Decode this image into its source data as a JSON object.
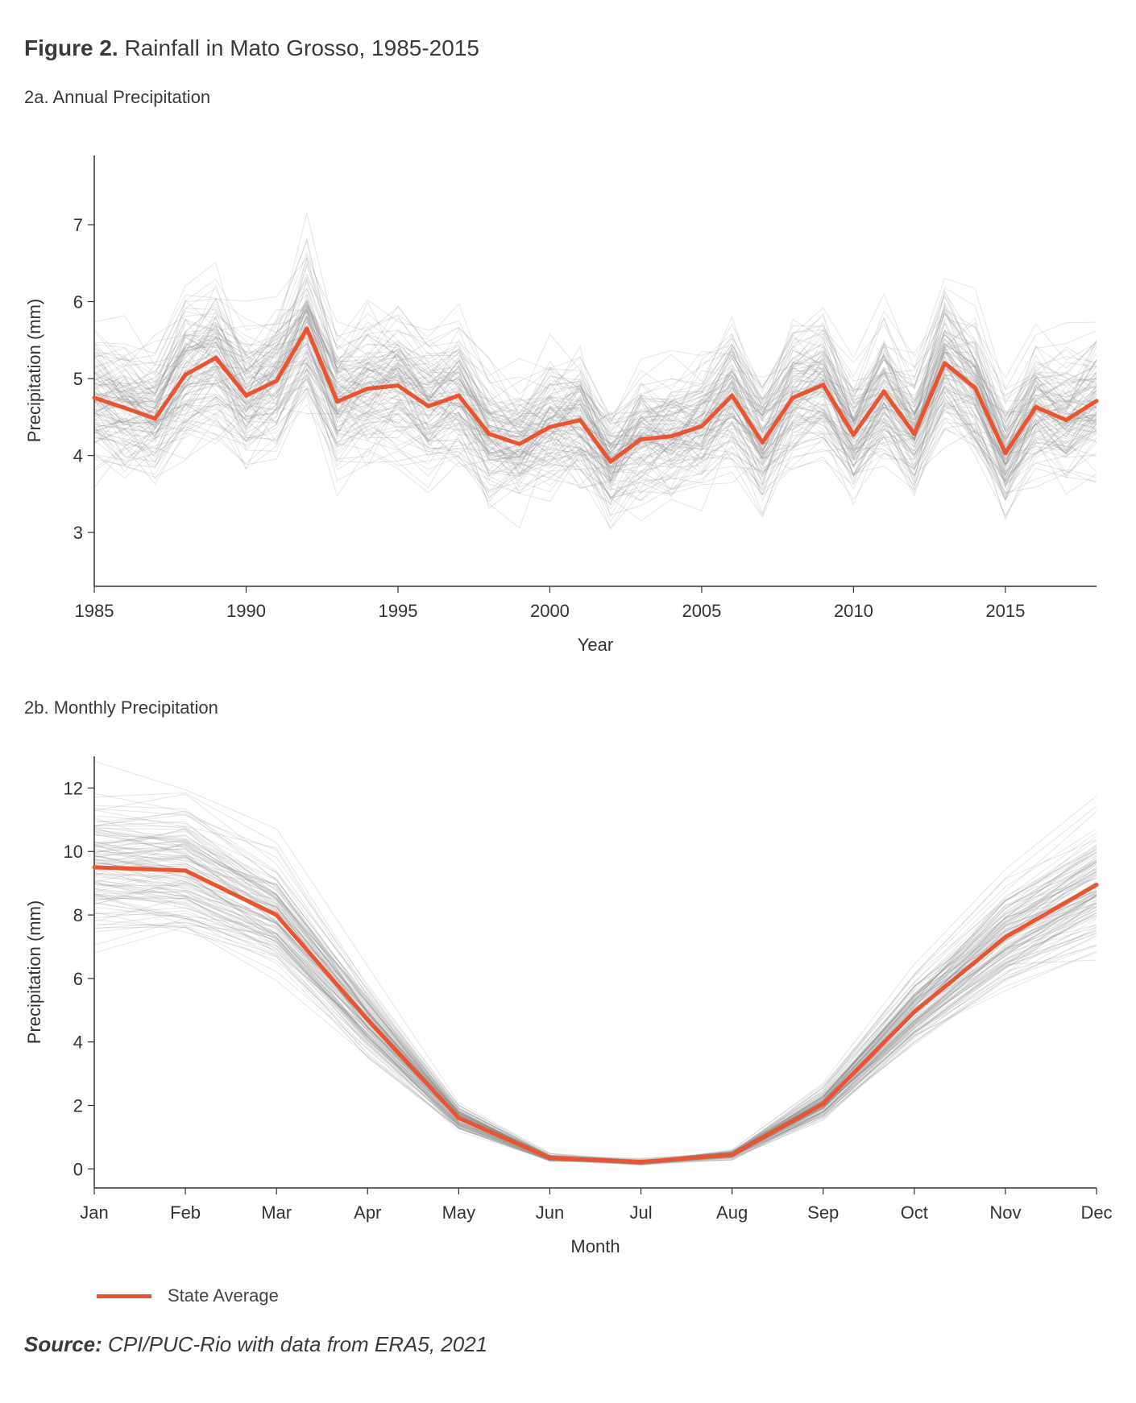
{
  "figure": {
    "label": "Figure 2.",
    "title": "Rainfall in Mato Grosso, 1985-2015"
  },
  "legend": {
    "label": "State Average",
    "color": "#e95531"
  },
  "source": {
    "label": "Source:",
    "text": "CPI/PUC-Rio with data from ERA5, 2021"
  },
  "colors": {
    "average": "#e95531",
    "grid_lines": "#999999"
  },
  "chart_data": [
    {
      "type": "line",
      "title": "2a. Annual Precipitation",
      "xlabel": "Year",
      "ylabel": "Precipitation (mm)",
      "xlim": [
        1985,
        2018
      ],
      "ylim": [
        2.3,
        7.9
      ],
      "xticks": [
        "1985",
        "1990",
        "1995",
        "2000",
        "2005",
        "2010",
        "2015"
      ],
      "yticks": [
        "3",
        "4",
        "5",
        "6",
        "7"
      ],
      "grid": false,
      "background_series_count": 120,
      "x": [
        1985,
        1986,
        1987,
        1988,
        1989,
        1990,
        1991,
        1992,
        1993,
        1994,
        1995,
        1996,
        1997,
        1998,
        1999,
        2000,
        2001,
        2002,
        2003,
        2004,
        2005,
        2006,
        2007,
        2008,
        2009,
        2010,
        2011,
        2012,
        2013,
        2014,
        2015,
        2016,
        2017,
        2018
      ],
      "series": [
        {
          "name": "State Average",
          "values": [
            4.75,
            4.62,
            4.48,
            5.05,
            5.27,
            4.78,
            4.97,
            5.65,
            4.7,
            4.87,
            4.91,
            4.64,
            4.78,
            4.28,
            4.15,
            4.37,
            4.46,
            3.92,
            4.21,
            4.25,
            4.38,
            4.78,
            4.17,
            4.75,
            4.92,
            4.27,
            4.83,
            4.28,
            5.2,
            4.88,
            4.03,
            4.63,
            4.46,
            4.71
          ]
        }
      ]
    },
    {
      "type": "line",
      "title": "2b. Monthly Precipitation",
      "xlabel": "Month",
      "ylabel": "Precipitation (mm)",
      "ylim": [
        -0.6,
        13
      ],
      "categories": [
        "Jan",
        "Feb",
        "Mar",
        "Apr",
        "May",
        "Jun",
        "Jul",
        "Aug",
        "Sep",
        "Oct",
        "Nov",
        "Dec"
      ],
      "yticks": [
        "0",
        "2",
        "4",
        "6",
        "8",
        "10",
        "12"
      ],
      "grid": false,
      "background_series_count": 120,
      "series": [
        {
          "name": "State Average",
          "values": [
            9.5,
            9.4,
            8.0,
            4.7,
            1.6,
            0.35,
            0.22,
            0.45,
            2.05,
            4.95,
            7.3,
            8.95
          ]
        }
      ]
    }
  ]
}
